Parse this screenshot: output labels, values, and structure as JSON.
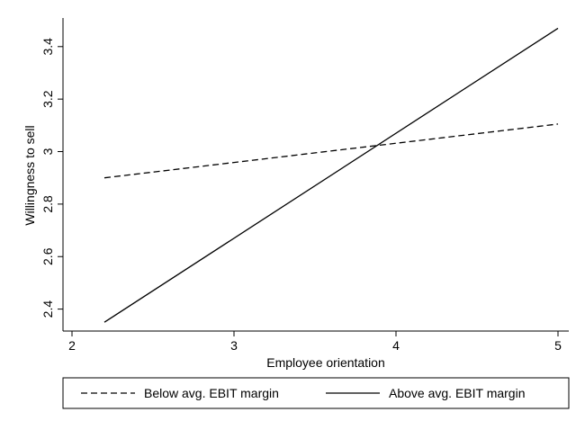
{
  "chart_data": {
    "type": "line",
    "xlabel": "Employee orientation",
    "ylabel": "Willingness to sell",
    "xlim": [
      2,
      5
    ],
    "ylim": [
      2.35,
      3.5
    ],
    "xticks": [
      2,
      3,
      4,
      5
    ],
    "yticks": [
      2.4,
      2.6,
      2.8,
      3,
      3.2,
      3.4
    ],
    "xtick_labels": [
      "2",
      "3",
      "4",
      "5"
    ],
    "ytick_labels": [
      "2.4",
      "2.6",
      "2.8",
      "3",
      "3.2",
      "3.4"
    ],
    "grid": false,
    "legend_position": "bottom",
    "series": [
      {
        "name": "Below avg. EBIT margin",
        "style": "dashed",
        "color": "#000000",
        "x": [
          2.2,
          5
        ],
        "y": [
          2.9,
          3.105
        ]
      },
      {
        "name": "Above avg. EBIT margin",
        "style": "solid",
        "color": "#000000",
        "x": [
          2.2,
          5
        ],
        "y": [
          2.35,
          3.47
        ]
      }
    ]
  }
}
